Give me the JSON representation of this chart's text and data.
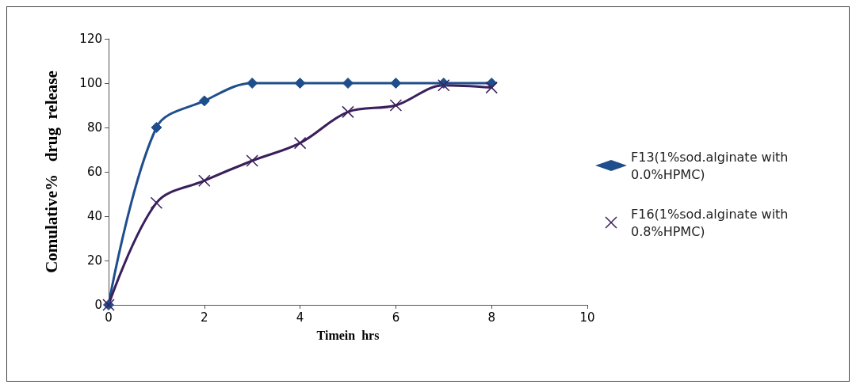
{
  "chart_data": {
    "type": "line",
    "xlabel": "Timein  hrs",
    "ylabel": "Comulative%   drug  release",
    "x": [
      0,
      1,
      2,
      3,
      4,
      5,
      6,
      7,
      8
    ],
    "series": [
      {
        "name": "F13(1%sod.alginate with 0.0%HPMC)",
        "color": "#1f4e8c",
        "marker": "diamond",
        "values": [
          0,
          80,
          92,
          100,
          100,
          100,
          100,
          100,
          100
        ]
      },
      {
        "name": "F16(1%sod.alginate with 0.8%HPMC)",
        "color": "#3b1f5c",
        "marker": "cross",
        "values": [
          0,
          46,
          56,
          65,
          73,
          87,
          90,
          99,
          98
        ]
      }
    ],
    "xlim": [
      0,
      10
    ],
    "xticks": [
      0,
      2,
      4,
      6,
      8,
      10
    ],
    "ylim": [
      0,
      120
    ],
    "yticks": [
      0,
      20,
      40,
      60,
      80,
      100,
      120
    ],
    "grid": false,
    "legend": "right",
    "line_style": "solid"
  }
}
